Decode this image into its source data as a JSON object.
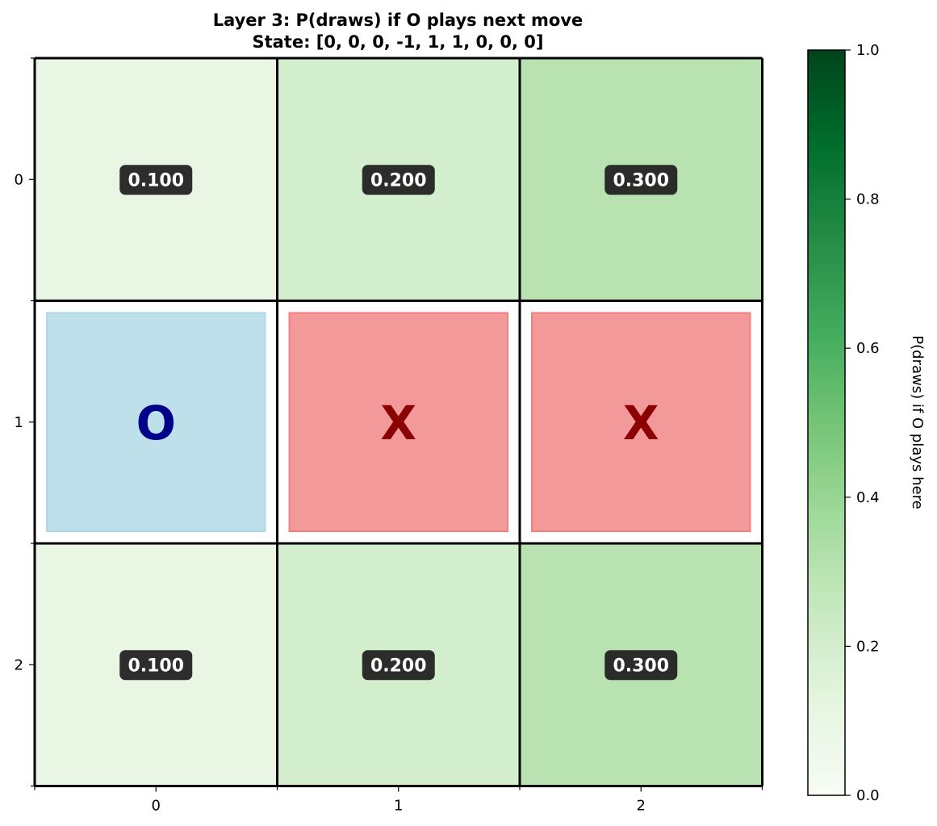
{
  "chart_data": {
    "type": "heatmap",
    "title": "Layer 3: P(draws) if O plays next move",
    "subtitle": "State: [0, 0, 0, -1, 1, 1, 0, 0, 0]",
    "x_ticks": [
      "0",
      "1",
      "2"
    ],
    "y_ticks": [
      "0",
      "1",
      "2"
    ],
    "cells": [
      [
        {
          "value": 0.1,
          "label": "0.100"
        },
        {
          "value": 0.2,
          "label": "0.200"
        },
        {
          "value": 0.3,
          "label": "0.300"
        }
      ],
      [
        {
          "piece": "O"
        },
        {
          "piece": "X"
        },
        {
          "piece": "X"
        }
      ],
      [
        {
          "value": 0.1,
          "label": "0.100"
        },
        {
          "value": 0.2,
          "label": "0.200"
        },
        {
          "value": 0.3,
          "label": "0.300"
        }
      ]
    ],
    "colormap": "Greens",
    "colorbar": {
      "label": "P(draws) if O plays here",
      "range": [
        0,
        1
      ],
      "ticks": [
        "0.0",
        "0.2",
        "0.4",
        "0.6",
        "0.8",
        "1.0"
      ]
    },
    "colors": {
      "O_fill": "#add8e6",
      "O_text": "#00008b",
      "X_fill": "#f08080",
      "X_text": "#8b0000",
      "label_box": "#222222"
    }
  }
}
